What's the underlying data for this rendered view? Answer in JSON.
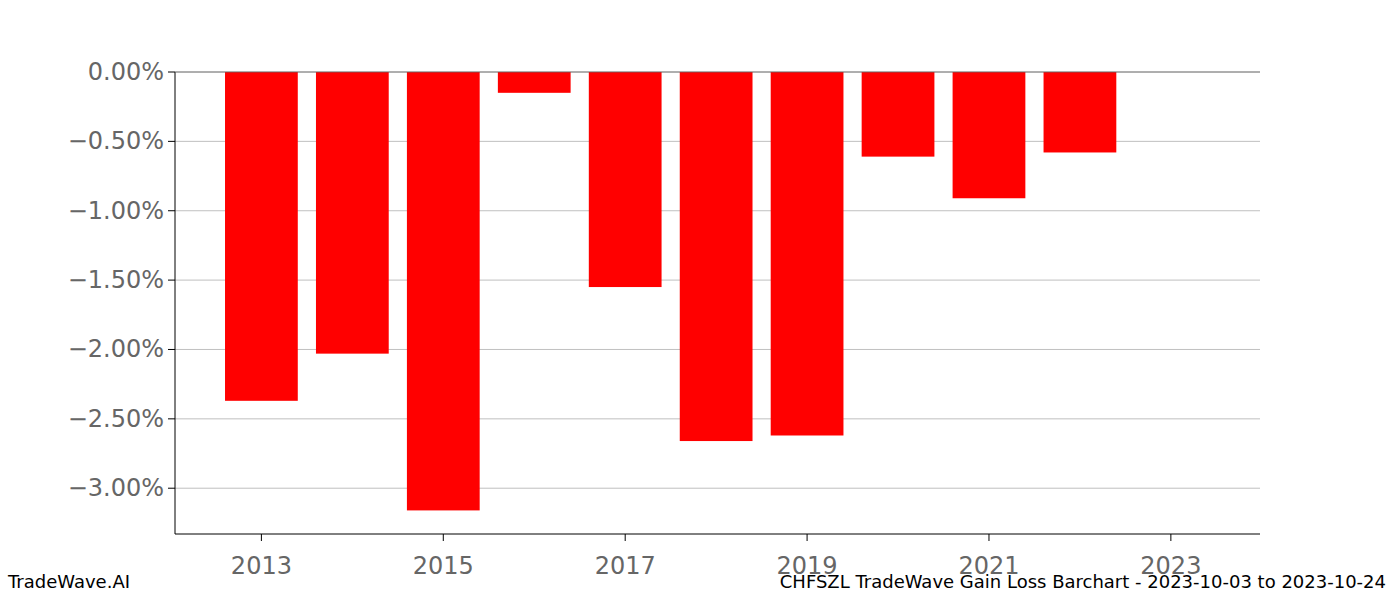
{
  "chart_data": {
    "type": "bar",
    "title": "CHFSZL TradeWave Gain Loss Barchart - 2023-10-03 to 2023-10-24",
    "annotation": "TradeWave.AI",
    "x": [
      2013,
      2014,
      2015,
      2016,
      2017,
      2018,
      2019,
      2020,
      2021,
      2022
    ],
    "values": [
      -2.37,
      -2.03,
      -3.16,
      -0.15,
      -1.55,
      -2.66,
      -2.62,
      -0.61,
      -0.91,
      -0.58
    ],
    "color": "#ff0000",
    "xlim": [
      2012.05,
      2023.98
    ],
    "xticks": [
      2013,
      2015,
      2017,
      2019,
      2021,
      2023
    ],
    "ylim": [
      -3.33,
      0
    ],
    "yticks": [
      {
        "value": 0,
        "label": "0.00%"
      },
      {
        "value": -0.5,
        "label": "−0.50%"
      },
      {
        "value": -1,
        "label": "−1.00%"
      },
      {
        "value": -1.5,
        "label": "−1.50%"
      },
      {
        "value": -2,
        "label": "−2.00%"
      },
      {
        "value": -2.5,
        "label": "−2.50%"
      },
      {
        "value": -3,
        "label": "−3.00%"
      }
    ],
    "grid": true
  }
}
